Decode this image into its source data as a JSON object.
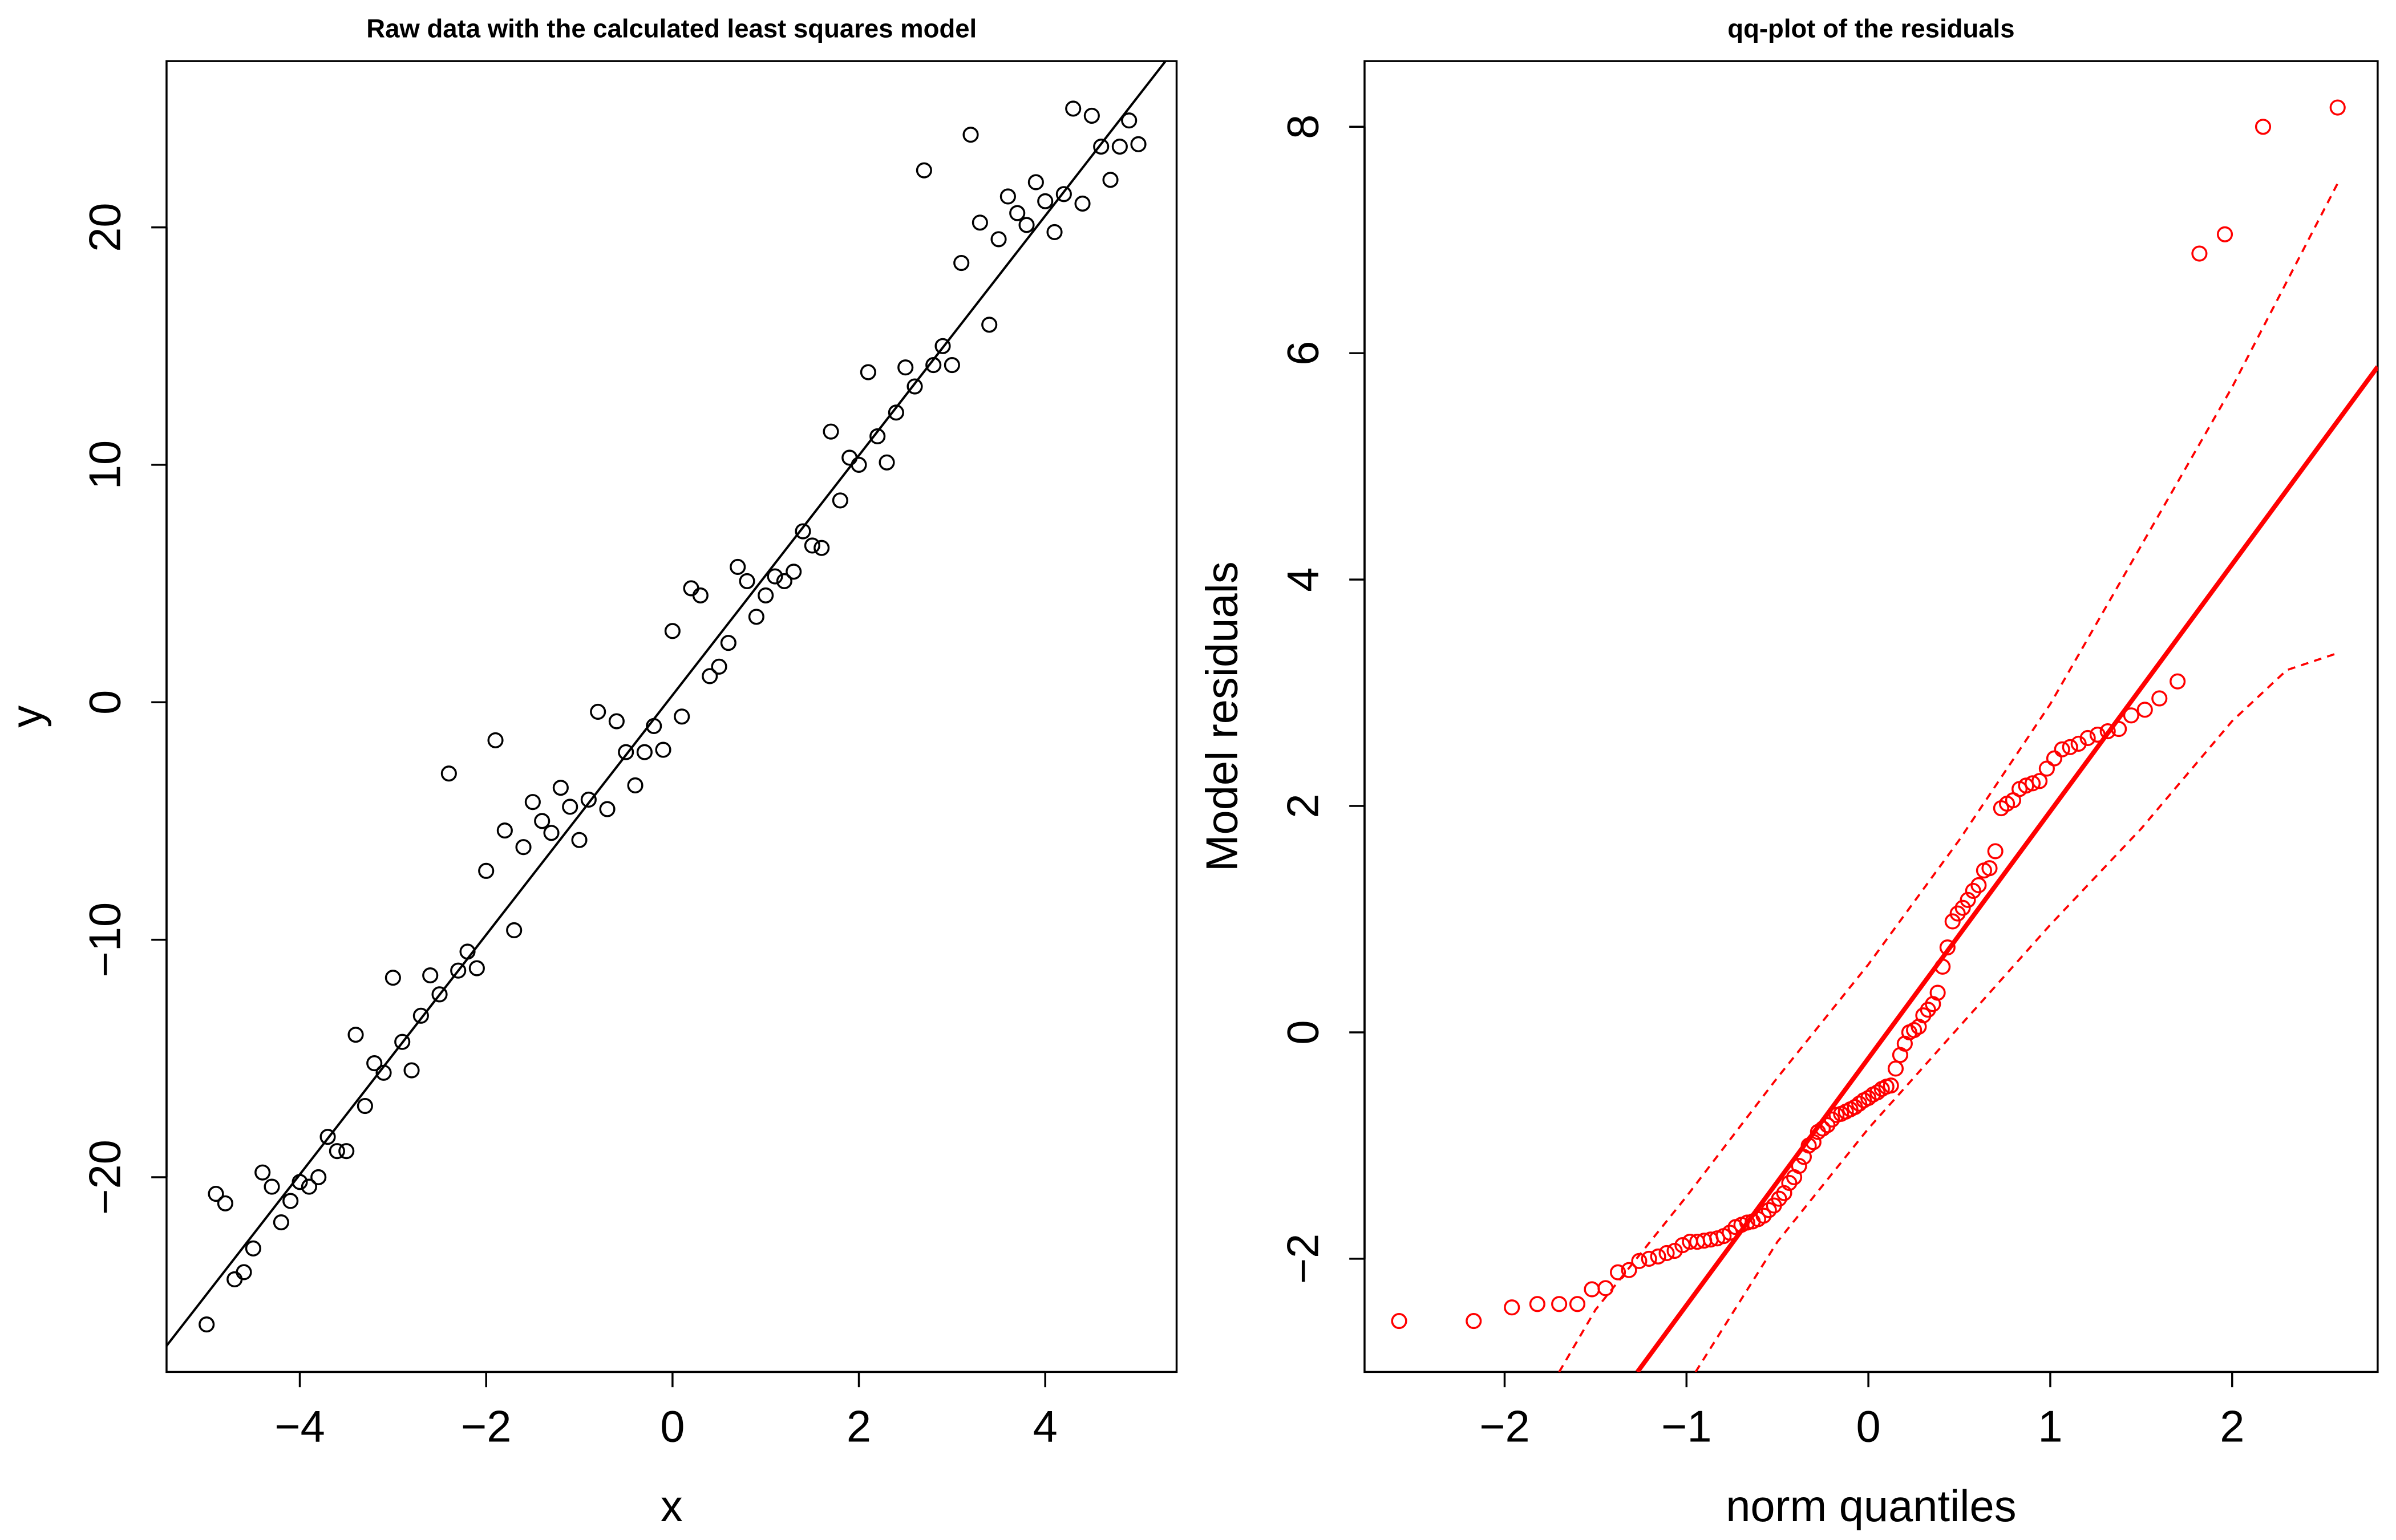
{
  "chart_data": [
    {
      "type": "scatter",
      "title": "Raw data with the calculated least squares model",
      "xlabel": "x",
      "ylabel": "y",
      "color": "#000000",
      "xlim": [
        -5.43,
        5.41
      ],
      "ylim": [
        -28.2,
        27.0
      ],
      "xticks": [
        {
          "value": -4,
          "label": "−4"
        },
        {
          "value": -2,
          "label": "−2"
        },
        0,
        2,
        4
      ],
      "yticks": [
        {
          "value": -20,
          "label": "−20"
        },
        {
          "value": -10,
          "label": "−10"
        },
        0,
        10,
        20
      ],
      "x": [
        -5.0,
        -4.9,
        -4.8,
        -4.7,
        -4.6,
        -4.5,
        -4.4,
        -4.3,
        -4.2,
        -4.1,
        -4.0,
        -3.9,
        -3.8,
        -3.7,
        -3.6,
        -3.5,
        -3.4,
        -3.3,
        -3.2,
        -3.1,
        -3.0,
        -2.9,
        -2.8,
        -2.7,
        -2.6,
        -2.5,
        -2.4,
        -2.3,
        -2.2,
        -2.1,
        -2.0,
        -1.9,
        -1.8,
        -1.7,
        -1.6,
        -1.5,
        -1.4,
        -1.3,
        -1.2,
        -1.1,
        -1.0,
        -0.9,
        -0.8,
        -0.7,
        -0.6,
        -0.5,
        -0.4,
        -0.3,
        -0.2,
        -0.1,
        0.0,
        0.1,
        0.2,
        0.3,
        0.4,
        0.5,
        0.6,
        0.7,
        0.8,
        0.9,
        1.0,
        1.1,
        1.2,
        1.3,
        1.4,
        1.5,
        1.6,
        1.7,
        1.8,
        1.9,
        2.0,
        2.1,
        2.2,
        2.3,
        2.4,
        2.5,
        2.6,
        2.7,
        2.8,
        2.9,
        3.0,
        3.1,
        3.2,
        3.3,
        3.4,
        3.5,
        3.6,
        3.7,
        3.8,
        3.9,
        4.0,
        4.1,
        4.2,
        4.3,
        4.4,
        4.5,
        4.6,
        4.7,
        4.8,
        4.9,
        5.0
      ],
      "values": [
        -26.2,
        -20.7,
        -21.1,
        -24.3,
        -24.0,
        -23.0,
        -19.8,
        -20.4,
        -21.9,
        -21.0,
        -20.2,
        -20.4,
        -20.0,
        -18.3,
        -18.9,
        -18.9,
        -14.0,
        -17.0,
        -15.2,
        -15.6,
        -11.6,
        -14.3,
        -15.5,
        -13.2,
        -11.5,
        -12.3,
        -3.0,
        -11.3,
        -10.5,
        -11.2,
        -7.1,
        -1.6,
        -5.4,
        -9.6,
        -6.1,
        -4.2,
        -5.0,
        -5.5,
        -3.6,
        -4.4,
        -5.8,
        -4.1,
        -0.4,
        -4.5,
        -0.8,
        -2.1,
        -3.5,
        -2.1,
        -1.0,
        -2.0,
        3.0,
        -0.6,
        4.8,
        4.5,
        1.1,
        1.5,
        2.5,
        5.7,
        5.1,
        3.6,
        4.5,
        5.3,
        5.1,
        5.5,
        7.2,
        6.6,
        6.5,
        11.4,
        8.5,
        10.3,
        10.0,
        13.9,
        11.2,
        10.1,
        12.2,
        14.1,
        13.3,
        22.4,
        14.2,
        15.0,
        14.2,
        18.5,
        23.9,
        20.2,
        15.9,
        19.5,
        21.3,
        20.6,
        20.1,
        21.9,
        21.1,
        19.8,
        21.4,
        25.0,
        21.0,
        24.7,
        23.4,
        22.0,
        23.4,
        24.5,
        23.5
      ],
      "fit_line": {
        "x": [
          -5.43,
          5.41
        ],
        "values": [
          -27.1,
          27.6
        ]
      }
    },
    {
      "type": "qq",
      "title": "qq-plot of the residuals",
      "xlabel": "norm quantiles",
      "ylabel": "Model residuals",
      "color": "#ff0000",
      "xlim": [
        -2.77,
        2.8
      ],
      "ylim": [
        -3.0,
        8.58
      ],
      "xticks": [
        {
          "value": -2,
          "label": "−2"
        },
        {
          "value": -1,
          "label": "−1"
        },
        0,
        1,
        2
      ],
      "yticks": [
        {
          "value": -2,
          "label": "−2"
        },
        0,
        2,
        4,
        6,
        8
      ],
      "x": [
        -2.58,
        -2.17,
        -1.96,
        -1.82,
        -1.7,
        -1.6,
        -1.52,
        -1.445,
        -1.377,
        -1.316,
        -1.26,
        -1.206,
        -1.156,
        -1.109,
        -1.065,
        -1.022,
        -0.981,
        -0.941,
        -0.903,
        -0.867,
        -0.831,
        -0.796,
        -0.762,
        -0.73,
        -0.698,
        -0.666,
        -0.636,
        -0.606,
        -0.576,
        -0.547,
        -0.519,
        -0.491,
        -0.463,
        -0.435,
        -0.408,
        -0.381,
        -0.355,
        -0.328,
        -0.302,
        -0.277,
        -0.251,
        -0.225,
        -0.2,
        -0.175,
        -0.15,
        -0.124,
        -0.099,
        -0.074,
        -0.05,
        -0.025,
        0,
        0.025,
        0.05,
        0.074,
        0.099,
        0.124,
        0.15,
        0.175,
        0.2,
        0.225,
        0.251,
        0.277,
        0.302,
        0.328,
        0.355,
        0.381,
        0.408,
        0.435,
        0.463,
        0.491,
        0.519,
        0.547,
        0.576,
        0.606,
        0.636,
        0.666,
        0.698,
        0.73,
        0.762,
        0.796,
        0.831,
        0.867,
        0.903,
        0.941,
        0.981,
        1.022,
        1.065,
        1.109,
        1.156,
        1.206,
        1.26,
        1.316,
        1.377,
        1.445,
        1.52,
        1.6,
        1.7,
        1.82,
        1.96,
        2.17,
        2.58
      ],
      "values": [
        -2.55,
        -2.55,
        -2.43,
        -2.4,
        -2.4,
        -2.4,
        -2.27,
        -2.26,
        -2.12,
        -2.1,
        -2.02,
        -2.0,
        -1.98,
        -1.95,
        -1.93,
        -1.88,
        -1.85,
        -1.85,
        -1.84,
        -1.83,
        -1.82,
        -1.8,
        -1.77,
        -1.72,
        -1.7,
        -1.68,
        -1.67,
        -1.65,
        -1.62,
        -1.57,
        -1.53,
        -1.47,
        -1.42,
        -1.33,
        -1.28,
        -1.18,
        -1.1,
        -1.0,
        -0.97,
        -0.88,
        -0.85,
        -0.82,
        -0.77,
        -0.73,
        -0.72,
        -0.7,
        -0.68,
        -0.66,
        -0.63,
        -0.6,
        -0.58,
        -0.55,
        -0.53,
        -0.5,
        -0.48,
        -0.47,
        -0.32,
        -0.2,
        -0.1,
        0.0,
        0.02,
        0.05,
        0.15,
        0.2,
        0.25,
        0.35,
        0.58,
        0.75,
        0.98,
        1.05,
        1.1,
        1.17,
        1.25,
        1.3,
        1.43,
        1.45,
        1.6,
        1.98,
        2.02,
        2.05,
        2.15,
        2.18,
        2.2,
        2.22,
        2.33,
        2.42,
        2.5,
        2.52,
        2.55,
        2.6,
        2.63,
        2.66,
        2.68,
        2.8,
        2.85,
        2.95,
        3.1,
        6.88,
        7.05,
        8.0,
        8.17
      ],
      "ref_line": {
        "x": [
          -1.27,
          2.8
        ],
        "values": [
          -3.0,
          5.88
        ]
      },
      "band_upper": {
        "x": [
          -1.7,
          -1.5,
          -1.0,
          -0.5,
          0,
          0.5,
          1.0,
          1.5,
          2.0,
          2.58
        ],
        "values": [
          -3.0,
          -2.45,
          -1.45,
          -0.4,
          0.6,
          1.7,
          2.9,
          4.3,
          5.7,
          7.5
        ]
      },
      "band_lower": {
        "x": [
          -0.95,
          -0.5,
          0,
          0.5,
          1.0,
          1.5,
          2.0,
          2.3,
          2.58
        ],
        "values": [
          -3.0,
          -1.85,
          -0.85,
          0.05,
          0.95,
          1.8,
          2.75,
          3.2,
          3.35
        ]
      }
    }
  ]
}
